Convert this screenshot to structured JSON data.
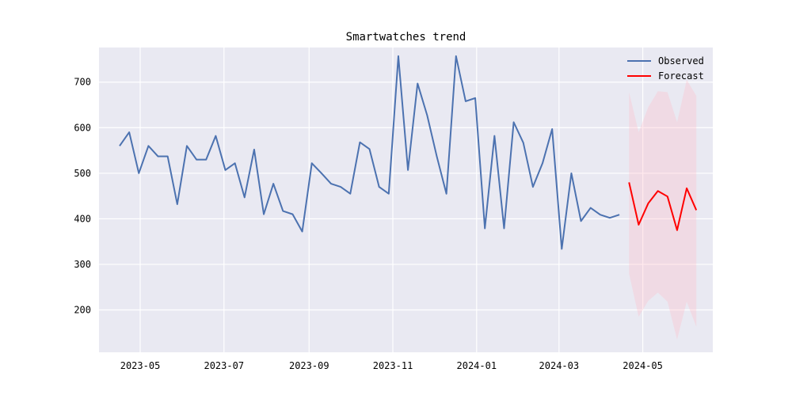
{
  "chart_data": {
    "type": "line",
    "title": "Smartwatches trend",
    "xlabel": "",
    "ylabel": "",
    "x_axis": {
      "type": "date",
      "range": [
        "2023-04-01",
        "2024-06-21"
      ],
      "ticks": [
        "2023-05-01",
        "2023-07-01",
        "2023-09-01",
        "2023-11-01",
        "2024-01-01",
        "2024-03-01",
        "2024-05-01"
      ],
      "tick_labels": [
        "2023-05",
        "2023-07",
        "2023-09",
        "2023-11",
        "2024-01",
        "2024-03",
        "2024-05"
      ]
    },
    "y_axis": {
      "range": [
        107,
        776
      ],
      "ticks": [
        200,
        300,
        400,
        500,
        600,
        700
      ],
      "tick_labels": [
        "200",
        "300",
        "400",
        "500",
        "600",
        "700"
      ]
    },
    "grid": true,
    "legend_position": "top-right",
    "colors": {
      "background": "#e9e9f2",
      "grid": "#ffffff",
      "observed": "#4c72b0",
      "forecast": "#ff0000",
      "confidence_band": "#ffc0cb"
    },
    "series": [
      {
        "name": "Observed",
        "dates": [
          "2023-04-16",
          "2023-04-23",
          "2023-04-30",
          "2023-05-07",
          "2023-05-14",
          "2023-05-21",
          "2023-05-28",
          "2023-06-04",
          "2023-06-11",
          "2023-06-18",
          "2023-06-25",
          "2023-07-02",
          "2023-07-09",
          "2023-07-16",
          "2023-07-23",
          "2023-07-30",
          "2023-08-06",
          "2023-08-13",
          "2023-08-20",
          "2023-08-27",
          "2023-09-03",
          "2023-09-10",
          "2023-09-17",
          "2023-09-24",
          "2023-10-01",
          "2023-10-08",
          "2023-10-15",
          "2023-10-22",
          "2023-10-29",
          "2023-11-05",
          "2023-11-12",
          "2023-11-19",
          "2023-11-26",
          "2023-12-03",
          "2023-12-10",
          "2023-12-17",
          "2023-12-24",
          "2023-12-31",
          "2024-01-07",
          "2024-01-14",
          "2024-01-21",
          "2024-01-28",
          "2024-02-04",
          "2024-02-11",
          "2024-02-18",
          "2024-02-25",
          "2024-03-03",
          "2024-03-10",
          "2024-03-17",
          "2024-03-24",
          "2024-03-31",
          "2024-04-07",
          "2024-04-14"
        ],
        "values": [
          560,
          590,
          500,
          560,
          537,
          537,
          432,
          560,
          530,
          530,
          582,
          507,
          522,
          447,
          552,
          410,
          477,
          417,
          410,
          372,
          522,
          500,
          477,
          470,
          455,
          568,
          553,
          470,
          455,
          757,
          507,
          697,
          627,
          537,
          455,
          757,
          658,
          665,
          379,
          582,
          379,
          612,
          567,
          470,
          522,
          597,
          334,
          500,
          395,
          424,
          409,
          402,
          409
        ]
      },
      {
        "name": "Forecast",
        "dates": [
          "2024-04-21",
          "2024-04-28",
          "2024-05-05",
          "2024-05-12",
          "2024-05-19",
          "2024-05-26",
          "2024-06-02",
          "2024-06-09"
        ],
        "values": [
          480,
          387,
          434,
          461,
          449,
          375,
          467,
          419
        ],
        "lower": [
          280,
          185,
          220,
          238,
          218,
          135,
          218,
          163
        ],
        "upper": [
          678,
          590,
          645,
          680,
          678,
          612,
          705,
          670
        ]
      }
    ]
  }
}
